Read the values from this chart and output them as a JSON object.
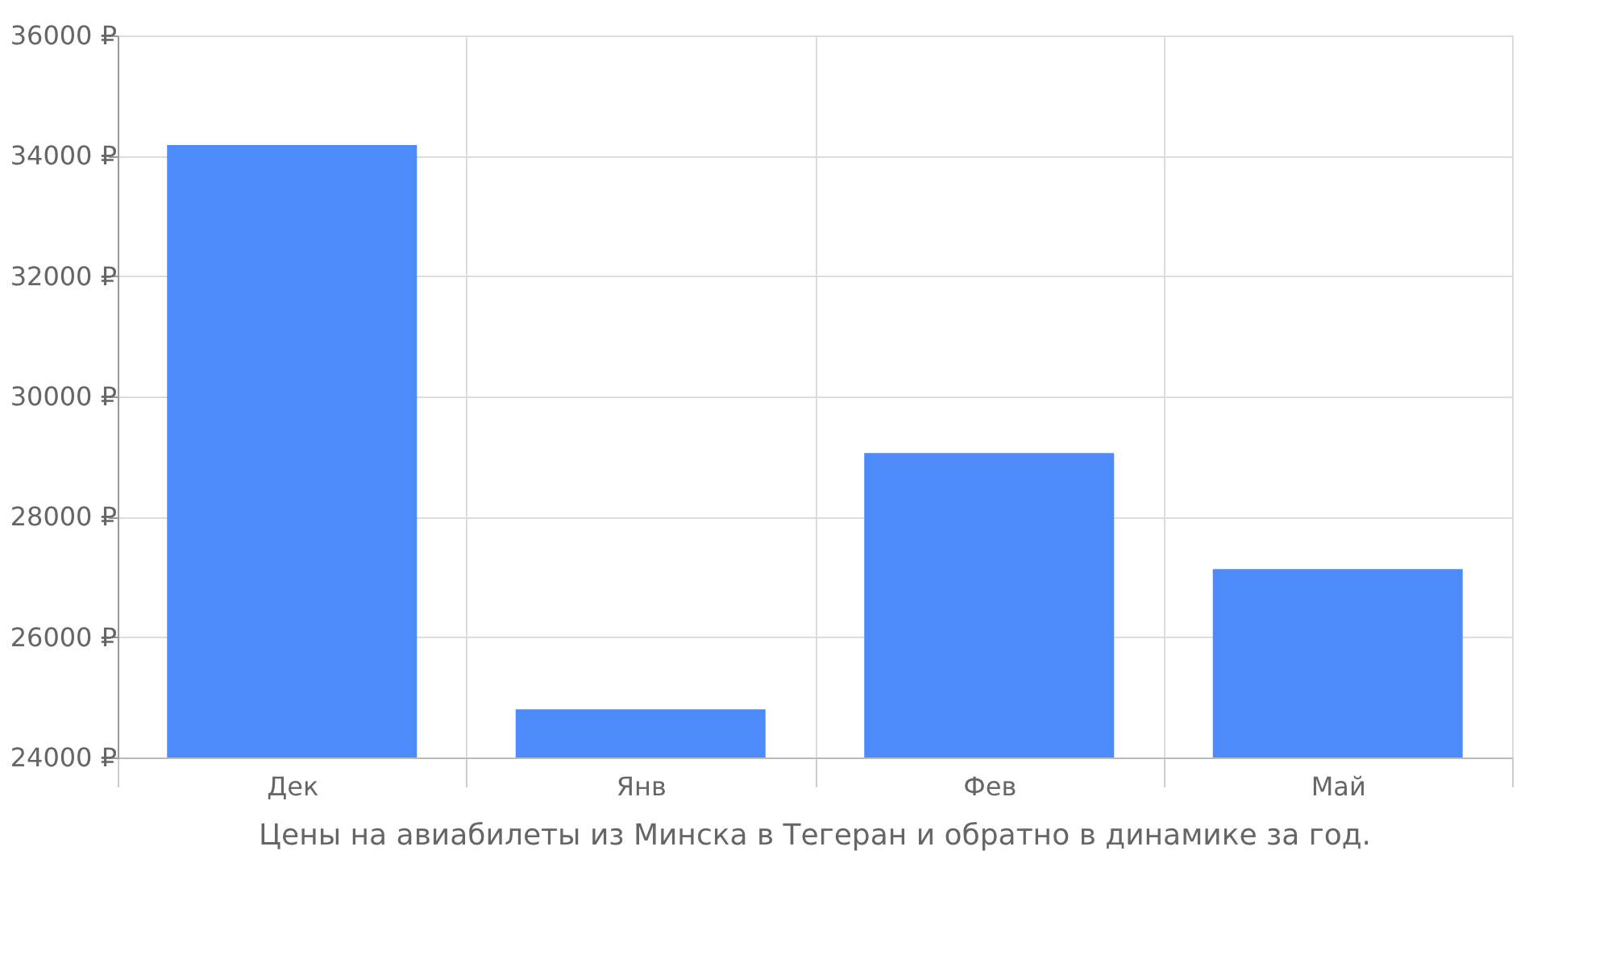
{
  "chart_data": {
    "type": "bar",
    "categories": [
      "Дек",
      "Янв",
      "Фев",
      "Май"
    ],
    "series": [
      {
        "color": "#4d8afa",
        "values": [
          34180,
          24800,
          29060,
          27130
        ]
      }
    ],
    "ylim": [
      24000,
      36000
    ],
    "yticks": [
      {
        "value": 24000,
        "label": "24000 ₽"
      },
      {
        "value": 26000,
        "label": "26000 ₽"
      },
      {
        "value": 28000,
        "label": "28000 ₽"
      },
      {
        "value": 30000,
        "label": "30000 ₽"
      },
      {
        "value": 32000,
        "label": "32000 ₽"
      },
      {
        "value": 34000,
        "label": "34000 ₽"
      },
      {
        "value": 36000,
        "label": "36000 ₽"
      }
    ],
    "grid": true,
    "legend": false,
    "annotations": [
      "Цены на авиабилеты из Минска в Тегеран и обратно в динамике за год."
    ]
  }
}
